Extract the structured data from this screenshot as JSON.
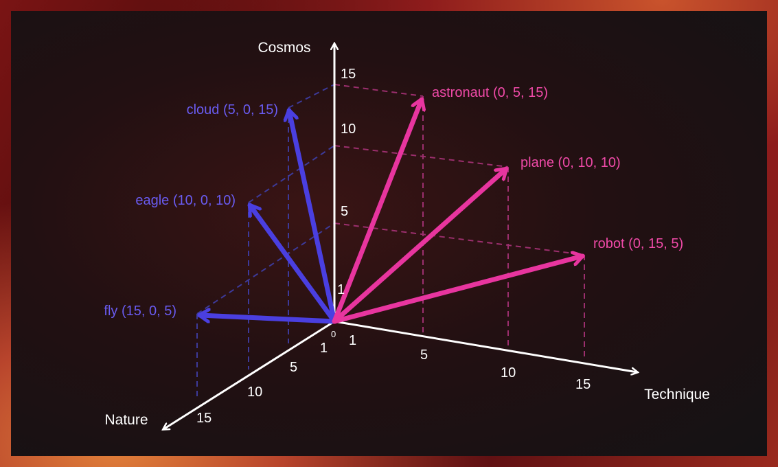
{
  "axes": {
    "cosmos": "Cosmos",
    "technique": "Technique",
    "nature": "Nature"
  },
  "origin_label": "0",
  "ticks": {
    "cosmos": [
      "1",
      "5",
      "10",
      "15"
    ],
    "technique": [
      "1",
      "5",
      "10",
      "15"
    ],
    "nature": [
      "1",
      "5",
      "10",
      "15"
    ]
  },
  "vectors": {
    "cloud": "cloud (5, 0, 15)",
    "eagle": "eagle (10, 0, 10)",
    "fly": "fly (15, 0, 5)",
    "astronaut": "astronaut (0, 5, 15)",
    "plane": "plane (0, 10, 10)",
    "robot": "robot (0, 15, 5)"
  },
  "colors": {
    "blue_vector": "#4a3fe0",
    "pink_vector": "#e8359f",
    "blue_dashed": "#3d3a9a",
    "pink_dashed": "#9c2f6e",
    "axis": "#ffffff"
  }
}
